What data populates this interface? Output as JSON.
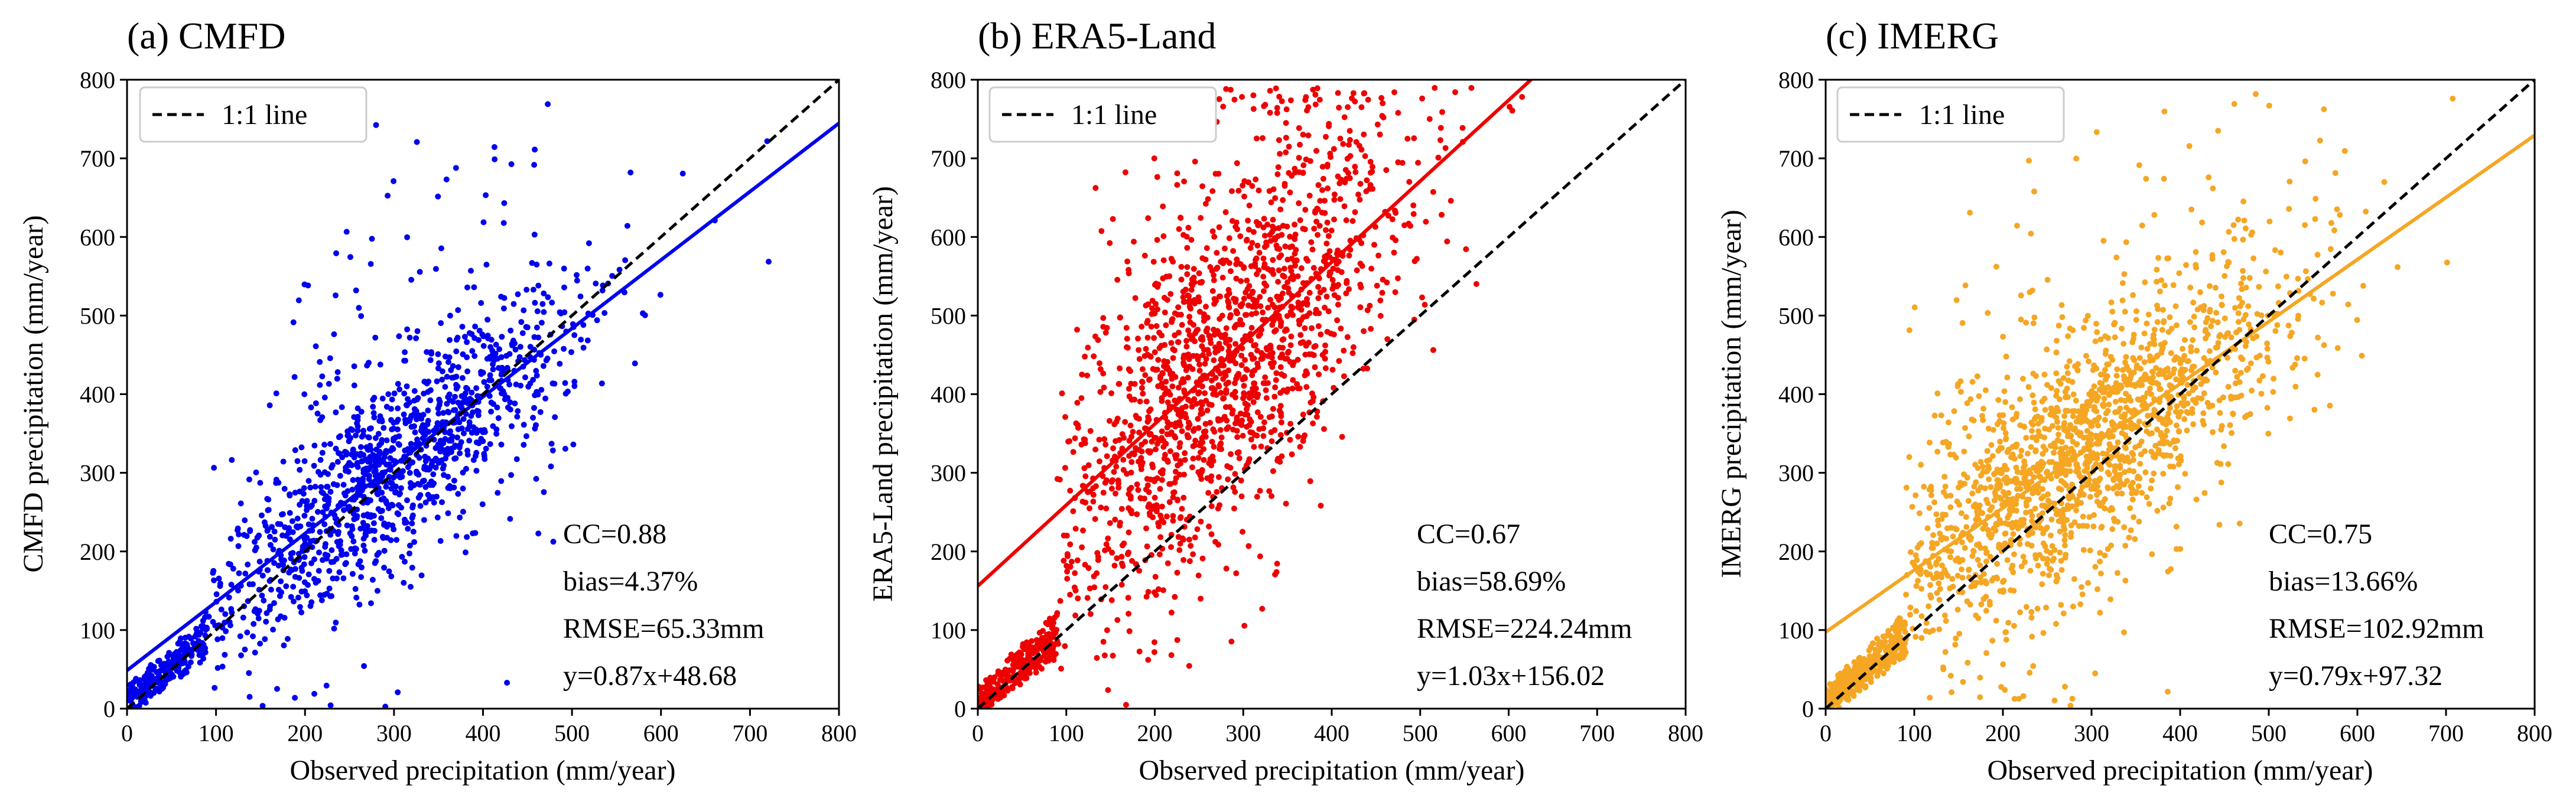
{
  "figure": {
    "legend_label": "1:1 line"
  },
  "chart_data": [
    {
      "type": "scatter",
      "title": "(a) CMFD",
      "xlabel": "Observed precipitation (mm/year)",
      "ylabel": "CMFD precipitation (mm/year)",
      "xlim": [
        0,
        800
      ],
      "ylim": [
        0,
        800
      ],
      "xticks": [
        0,
        100,
        200,
        300,
        400,
        500,
        600,
        700,
        800
      ],
      "yticks": [
        0,
        100,
        200,
        300,
        400,
        500,
        600,
        700,
        800
      ],
      "color": "#0000ee",
      "fit": {
        "slope": 0.87,
        "intercept": 48.68
      },
      "stats": {
        "cc": "CC=0.88",
        "bias": "bias=4.37%",
        "rmse": "RMSE=65.33mm",
        "eq": "y=0.87x+48.68"
      },
      "scatter_model": {
        "n": 1500,
        "xmean": 290,
        "xsd": 115,
        "resid_sd": 62,
        "outlier_frac": 0.06,
        "seed": 11
      },
      "series": [
        {
          "name": "1:1 line",
          "points": [
            [
              0,
              0
            ],
            [
              800,
              800
            ]
          ]
        }
      ]
    },
    {
      "type": "scatter",
      "title": "(b) ERA5-Land",
      "xlabel": "Observed precipitation (mm/year)",
      "ylabel": "ERA5-Land precipitation (mm/year)",
      "xlim": [
        0,
        800
      ],
      "ylim": [
        0,
        800
      ],
      "xticks": [
        0,
        100,
        200,
        300,
        400,
        500,
        600,
        700,
        800
      ],
      "yticks": [
        0,
        100,
        200,
        300,
        400,
        500,
        600,
        700,
        800
      ],
      "color": "#ee0000",
      "fit": {
        "slope": 1.03,
        "intercept": 156.02
      },
      "stats": {
        "cc": "CC=0.67",
        "bias": "bias=58.69%",
        "rmse": "RMSE=224.24mm",
        "eq": "y=1.03x+156.02"
      },
      "scatter_model": {
        "n": 1900,
        "xmean": 275,
        "xsd": 105,
        "resid_sd": 110,
        "outlier_frac": 0.04,
        "seed": 23
      },
      "series": [
        {
          "name": "1:1 line",
          "points": [
            [
              0,
              0
            ],
            [
              800,
              800
            ]
          ]
        }
      ]
    },
    {
      "type": "scatter",
      "title": "(c) IMERG",
      "xlabel": "Observed precipitation (mm/year)",
      "ylabel": "IMERG precipitation (mm/year)",
      "xlim": [
        0,
        800
      ],
      "ylim": [
        0,
        800
      ],
      "xticks": [
        0,
        100,
        200,
        300,
        400,
        500,
        600,
        700,
        800
      ],
      "yticks": [
        0,
        100,
        200,
        300,
        400,
        500,
        600,
        700,
        800
      ],
      "color": "#f5a623",
      "fit": {
        "slope": 0.79,
        "intercept": 97.32
      },
      "stats": {
        "cc": "CC=0.75",
        "bias": "bias=13.66%",
        "rmse": "RMSE=102.92mm",
        "eq": "y=0.79x+97.32"
      },
      "scatter_model": {
        "n": 2000,
        "xmean": 285,
        "xsd": 120,
        "resid_sd": 75,
        "outlier_frac": 0.05,
        "seed": 37
      },
      "series": [
        {
          "name": "1:1 line",
          "points": [
            [
              0,
              0
            ],
            [
              800,
              800
            ]
          ]
        }
      ]
    }
  ]
}
